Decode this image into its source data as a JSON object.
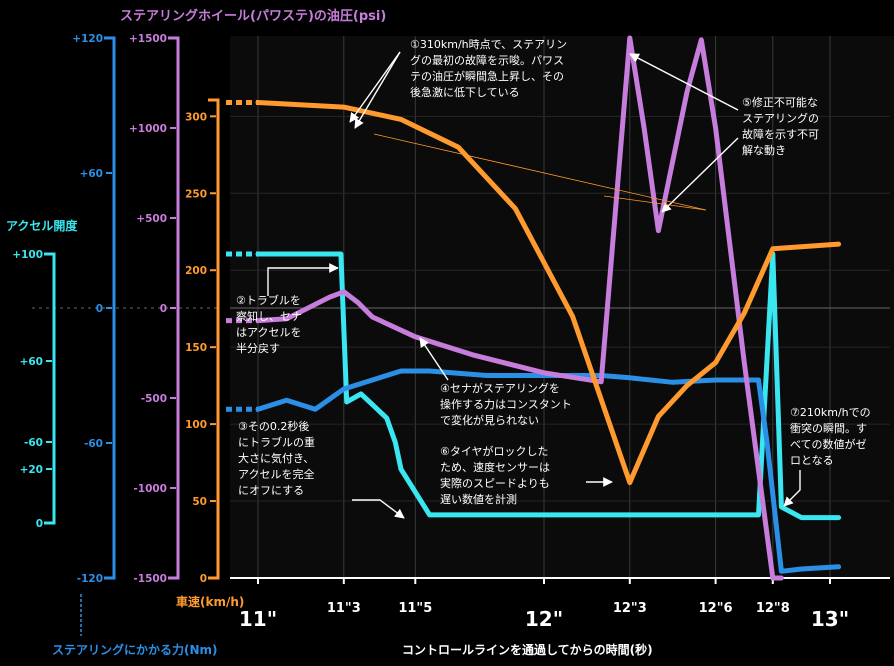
{
  "chart_data": {
    "type": "line",
    "title": "",
    "xlabel": "コントロールラインを通過してからの時間(秒)",
    "x_ticks": [
      "11\"",
      "11\"3",
      "11\"5",
      "12\"",
      "12\"3",
      "12\"6",
      "12\"8",
      "13\""
    ],
    "x_range": [
      10.95,
      13.03
    ],
    "axes": {
      "speed": {
        "label": "車速(km/h)",
        "ticks": [
          "0",
          "50",
          "100",
          "150",
          "200",
          "250",
          "300"
        ],
        "range": [
          0,
          306
        ],
        "color": "#ff9a2e"
      },
      "power_steering": {
        "label": "ステアリングホイール(パワステ)の油圧(psi)",
        "ticks": [
          "-1500",
          "-1000",
          "-500",
          "0",
          "+500",
          "+1000",
          "+1500"
        ],
        "range": [
          -1500,
          1500
        ],
        "color": "#c77ddb"
      },
      "steering_torque": {
        "label": "ステアリングにかかる力(Nm)",
        "ticks": [
          "-120",
          "-60",
          "0",
          "+60",
          "+120"
        ],
        "range": [
          -120,
          120
        ],
        "color": "#2b8fe6"
      },
      "throttle": {
        "label": "アクセル開度",
        "ticks": [
          "0",
          "+20",
          "+60",
          "-60",
          "+100"
        ],
        "color": "#3ae6f0"
      }
    },
    "series": [
      {
        "axis": "speed",
        "color": "#ff9a2e",
        "x": [
          11.0,
          11.3,
          11.5,
          11.7,
          11.9,
          12.1,
          12.3,
          12.4,
          12.5,
          12.6,
          12.7,
          12.8,
          13.03
        ],
        "y": [
          309,
          306,
          298,
          280,
          240,
          170,
          62,
          105,
          125,
          140,
          172,
          214,
          217
        ]
      },
      {
        "axis": "power_steering",
        "color": "#c77ddb",
        "x": [
          11.0,
          11.1,
          11.25,
          11.3,
          11.35,
          11.4,
          11.55,
          11.75,
          12.0,
          12.2,
          12.3,
          12.35,
          12.4,
          12.5,
          12.55,
          12.6,
          12.7,
          12.8,
          12.83
        ],
        "y": [
          -70,
          -60,
          60,
          90,
          30,
          -50,
          -160,
          -260,
          -360,
          -410,
          1500,
          1000,
          430,
          1200,
          1490,
          1000,
          -300,
          -1500,
          -1500
        ]
      },
      {
        "axis": "steering_torque",
        "color": "#2b8fe6",
        "x": [
          11.0,
          11.1,
          11.2,
          11.3,
          11.5,
          11.6,
          11.8,
          12.0,
          12.2,
          12.3,
          12.45,
          12.6,
          12.75,
          12.78,
          12.83,
          12.9,
          13.03
        ],
        "y": [
          -45,
          -41,
          -45,
          -36,
          -28,
          -28,
          -30,
          -30,
          -30,
          -31,
          -33,
          -32,
          -32,
          -60,
          -117,
          -116,
          -115
        ]
      },
      {
        "axis": "throttle",
        "color": "#3ae6f0",
        "x": [
          11.0,
          11.29,
          11.31,
          11.36,
          11.4,
          11.45,
          11.48,
          11.5,
          11.6,
          12.0,
          12.5,
          12.75,
          12.8,
          12.83,
          12.9,
          13.03
        ],
        "y": [
          100,
          100,
          45,
          48,
          44,
          39,
          30,
          20,
          3,
          3,
          3,
          3,
          100,
          6,
          2,
          2
        ]
      }
    ],
    "annotations": [
      {
        "lines": [
          "①310km/h時点で、ステアリン",
          "グの最初の故障を示唆。パワス",
          "テの油圧が瞬間急上昇し、その",
          "後急激に低下している"
        ]
      },
      {
        "lines": [
          "②トラブルを",
          "察知し、セナ",
          "はアクセルを",
          "半分戻す"
        ]
      },
      {
        "lines": [
          "③その0.2秒後",
          "にトラブルの重",
          "大さに気付き、",
          "アクセルを完全",
          "にオフにする"
        ]
      },
      {
        "lines": [
          "④セナがステアリングを",
          "操作する力はコンスタント",
          "で変化が見られない"
        ]
      },
      {
        "lines": [
          "⑤修正不可能な",
          "ステアリングの",
          "故障を示す不可",
          "解な動き"
        ]
      },
      {
        "lines": [
          "⑥タイヤがロックした",
          "ため、速度センサーは",
          "実際のスピードよりも",
          "遅い数値を計測"
        ]
      },
      {
        "lines": [
          "⑦210km/hでの",
          "衝突の瞬間。す",
          "べての数値がゼ",
          "ロとなる"
        ]
      }
    ]
  }
}
